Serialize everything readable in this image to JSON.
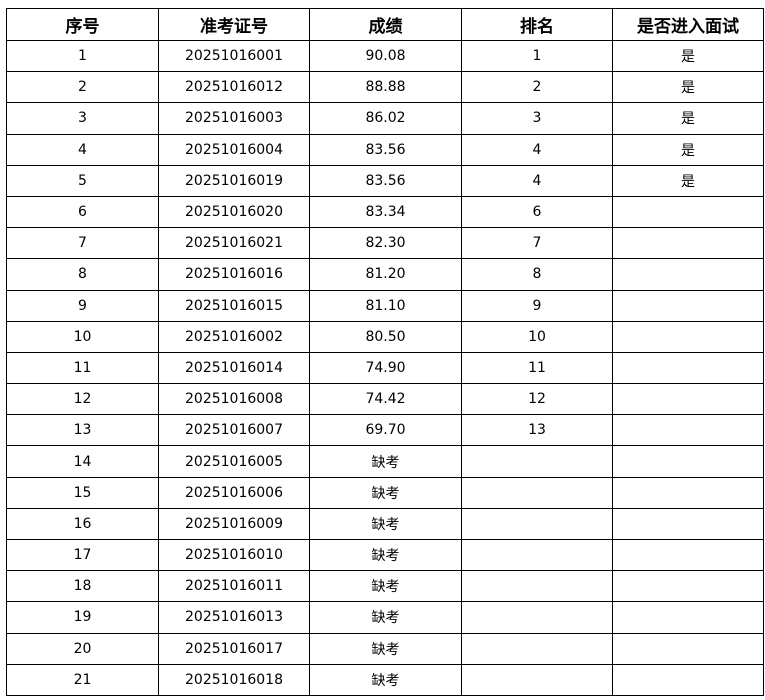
{
  "table": {
    "headers": [
      "序号",
      "准考证号",
      "成绩",
      "排名",
      "是否进入面试"
    ],
    "rows": [
      [
        "1",
        "20251016001",
        "90.08",
        "1",
        "是"
      ],
      [
        "2",
        "20251016012",
        "88.88",
        "2",
        "是"
      ],
      [
        "3",
        "20251016003",
        "86.02",
        "3",
        "是"
      ],
      [
        "4",
        "20251016004",
        "83.56",
        "4",
        "是"
      ],
      [
        "5",
        "20251016019",
        "83.56",
        "4",
        "是"
      ],
      [
        "6",
        "20251016020",
        "83.34",
        "6",
        ""
      ],
      [
        "7",
        "20251016021",
        "82.30",
        "7",
        ""
      ],
      [
        "8",
        "20251016016",
        "81.20",
        "8",
        ""
      ],
      [
        "9",
        "20251016015",
        "81.10",
        "9",
        ""
      ],
      [
        "10",
        "20251016002",
        "80.50",
        "10",
        ""
      ],
      [
        "11",
        "20251016014",
        "74.90",
        "11",
        ""
      ],
      [
        "12",
        "20251016008",
        "74.42",
        "12",
        ""
      ],
      [
        "13",
        "20251016007",
        "69.70",
        "13",
        ""
      ],
      [
        "14",
        "20251016005",
        "缺考",
        "",
        ""
      ],
      [
        "15",
        "20251016006",
        "缺考",
        "",
        ""
      ],
      [
        "16",
        "20251016009",
        "缺考",
        "",
        ""
      ],
      [
        "17",
        "20251016010",
        "缺考",
        "",
        ""
      ],
      [
        "18",
        "20251016011",
        "缺考",
        "",
        ""
      ],
      [
        "19",
        "20251016013",
        "缺考",
        "",
        ""
      ],
      [
        "20",
        "20251016017",
        "缺考",
        "",
        ""
      ],
      [
        "21",
        "20251016018",
        "缺考",
        "",
        ""
      ]
    ]
  }
}
